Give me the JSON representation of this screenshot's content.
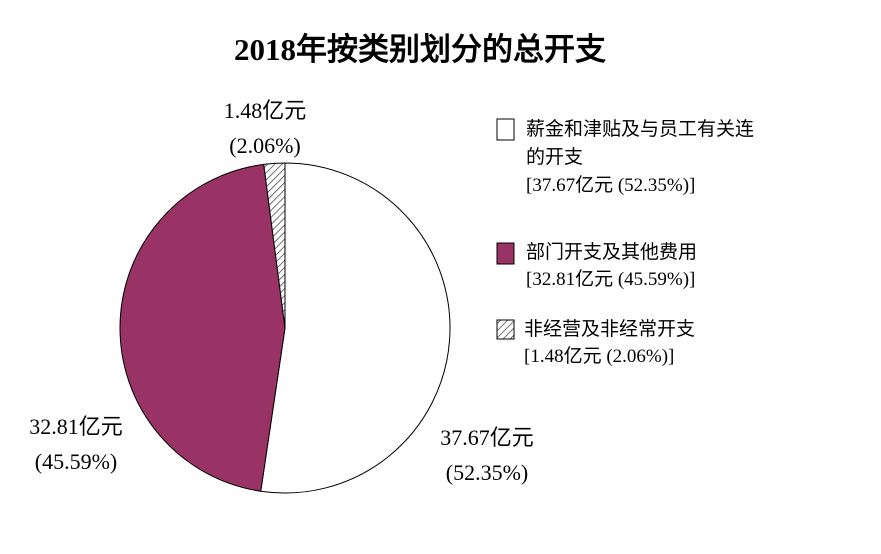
{
  "chart_data": {
    "type": "pie",
    "title": "2018年按类别划分的总开支",
    "unit": "亿元",
    "slices": [
      {
        "name": "薪金和津贴及与员工有关连的开支",
        "legend_lines": [
          "薪金和津贴及与员工有关连",
          "的开支"
        ],
        "value": 37.67,
        "percent": 52.35,
        "value_label": "37.67亿元",
        "percent_label": "(52.35%)",
        "legend_value": "[37.67亿元 (52.35%)]",
        "fill": "#ffffff",
        "pattern": "none"
      },
      {
        "name": "部门开支及其他费用",
        "legend_lines": [
          "部门开支及其他费用"
        ],
        "value": 32.81,
        "percent": 45.59,
        "value_label": "32.81亿元",
        "percent_label": "(45.59%)",
        "legend_value": "[32.81亿元 (45.59%)]",
        "fill": "#993366",
        "pattern": "none"
      },
      {
        "name": "非经营及非经常开支",
        "legend_lines": [
          "非经营及非经常开支"
        ],
        "value": 1.48,
        "percent": 2.06,
        "value_label": "1.48亿元",
        "percent_label": "(2.06%)",
        "legend_value": "[1.48亿元 (2.06%)]",
        "fill": "#ffffff",
        "pattern": "diagonal-hatch"
      }
    ],
    "start_angle": "12 o'clock",
    "direction": "clockwise",
    "legend_position": "right"
  }
}
